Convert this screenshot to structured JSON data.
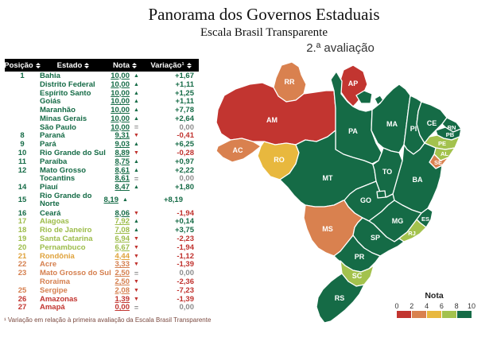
{
  "title": "Panorama dos Governos Estaduais",
  "subtitle": "Escala Brasil Transparente",
  "map": {
    "caption": "2.ª avaliação",
    "legend": {
      "title": "Nota",
      "ticks": [
        "0",
        "2",
        "4",
        "6",
        "8",
        "10"
      ]
    },
    "states": [
      {
        "id": "RR",
        "band": "g2"
      },
      {
        "id": "AP",
        "band": "g1"
      },
      {
        "id": "AM",
        "band": "g1"
      },
      {
        "id": "PA",
        "band": "g5"
      },
      {
        "id": "MARAJO",
        "band": "g5"
      },
      {
        "id": "ILHA",
        "band": "g5"
      },
      {
        "id": "MA",
        "band": "g5"
      },
      {
        "id": "PI",
        "band": "g5"
      },
      {
        "id": "CE",
        "band": "g5"
      },
      {
        "id": "RN",
        "band": "g5"
      },
      {
        "id": "PB",
        "band": "g5"
      },
      {
        "id": "PE",
        "band": "g4"
      },
      {
        "id": "AL",
        "band": "g4"
      },
      {
        "id": "SE",
        "band": "g2"
      },
      {
        "id": "BA",
        "band": "g5"
      },
      {
        "id": "AC",
        "band": "g2"
      },
      {
        "id": "RO",
        "band": "g3"
      },
      {
        "id": "MT",
        "band": "g5"
      },
      {
        "id": "TO",
        "band": "g5"
      },
      {
        "id": "GO",
        "band": "g5"
      },
      {
        "id": "DF",
        "band": "g5"
      },
      {
        "id": "MG",
        "band": "g5"
      },
      {
        "id": "ES",
        "band": "g5"
      },
      {
        "id": "MS",
        "band": "g2"
      },
      {
        "id": "SP",
        "band": "g5"
      },
      {
        "id": "RJ",
        "band": "g4"
      },
      {
        "id": "PR",
        "band": "g5"
      },
      {
        "id": "SC",
        "band": "g4"
      },
      {
        "id": "RS",
        "band": "g5"
      }
    ]
  },
  "colors": {
    "g1": "#c23530",
    "g2": "#d9814f",
    "g3": "#e8b83e",
    "g4": "#a3c24d",
    "g5": "#156b46",
    "legend_order": [
      "g1",
      "g2",
      "g3",
      "g4",
      "g5"
    ]
  },
  "table": {
    "headers": [
      "Posição",
      "Estado",
      "Nota",
      "Variação¹"
    ],
    "rows": [
      {
        "pos": "1",
        "estado": "Bahia",
        "nota": "10,00",
        "trend": "up",
        "variacao": "+1,67",
        "band": "g5"
      },
      {
        "pos": "",
        "estado": "Distrito Federal",
        "nota": "10,00",
        "trend": "up",
        "variacao": "+1,11",
        "band": "g5"
      },
      {
        "pos": "",
        "estado": "Espírito Santo",
        "nota": "10,00",
        "trend": "up",
        "variacao": "+1,25",
        "band": "g5"
      },
      {
        "pos": "",
        "estado": "Goiás",
        "nota": "10,00",
        "trend": "up",
        "variacao": "+1,11",
        "band": "g5"
      },
      {
        "pos": "",
        "estado": "Maranhão",
        "nota": "10,00",
        "trend": "up",
        "variacao": "+7,78",
        "band": "g5"
      },
      {
        "pos": "",
        "estado": "Minas Gerais",
        "nota": "10,00",
        "trend": "up",
        "variacao": "+2,64",
        "band": "g5"
      },
      {
        "pos": "",
        "estado": "São Paulo",
        "nota": "10,00",
        "trend": "eq",
        "variacao": "0,00",
        "band": "g5"
      },
      {
        "pos": "8",
        "estado": "Paraná",
        "nota": "9,31",
        "trend": "down",
        "variacao": "-0,41",
        "band": "g5"
      },
      {
        "pos": "9",
        "estado": "Pará",
        "nota": "9,03",
        "trend": "up",
        "variacao": "+6,25",
        "band": "g5"
      },
      {
        "pos": "10",
        "estado": "Rio Grande do Sul",
        "nota": "8,89",
        "trend": "down",
        "variacao": "-0,28",
        "band": "g5"
      },
      {
        "pos": "11",
        "estado": "Paraíba",
        "nota": "8,75",
        "trend": "up",
        "variacao": "+0,97",
        "band": "g5"
      },
      {
        "pos": "12",
        "estado": "Mato Grosso",
        "nota": "8,61",
        "trend": "up",
        "variacao": "+2,22",
        "band": "g5"
      },
      {
        "pos": "",
        "estado": "Tocantins",
        "nota": "8,61",
        "trend": "eq",
        "variacao": "0,00",
        "band": "g5"
      },
      {
        "pos": "14",
        "estado": "Piauí",
        "nota": "8,47",
        "trend": "up",
        "variacao": "+1,80",
        "band": "g5"
      },
      {
        "pos": "15",
        "estado": "Rio Grande do Norte",
        "nota": "8,19",
        "trend": "up",
        "variacao": "+8,19",
        "band": "g5",
        "wrap": true
      },
      {
        "pos": "16",
        "estado": "Ceará",
        "nota": "8,06",
        "trend": "down",
        "variacao": "-1,94",
        "band": "g5"
      },
      {
        "pos": "17",
        "estado": "Alagoas",
        "nota": "7,92",
        "trend": "up",
        "variacao": "+0,14",
        "band": "g4"
      },
      {
        "pos": "18",
        "estado": "Rio de Janeiro",
        "nota": "7,08",
        "trend": "up",
        "variacao": "+3,75",
        "band": "g4"
      },
      {
        "pos": "19",
        "estado": "Santa Catarina",
        "nota": "6,94",
        "trend": "down",
        "variacao": "-2,23",
        "band": "g4"
      },
      {
        "pos": "20",
        "estado": "Pernambuco",
        "nota": "6,67",
        "trend": "down",
        "variacao": "-1,94",
        "band": "g4"
      },
      {
        "pos": "21",
        "estado": "Rondônia",
        "nota": "4,44",
        "trend": "down",
        "variacao": "-1,12",
        "band": "g3"
      },
      {
        "pos": "22",
        "estado": "Acre",
        "nota": "3,33",
        "trend": "down",
        "variacao": "-1,39",
        "band": "g2"
      },
      {
        "pos": "23",
        "estado": "Mato Grosso do Sul",
        "nota": "2,50",
        "trend": "eq",
        "variacao": "0,00",
        "band": "g2"
      },
      {
        "pos": "",
        "estado": "Roraima",
        "nota": "2,50",
        "trend": "down",
        "variacao": "-2,36",
        "band": "g2"
      },
      {
        "pos": "25",
        "estado": "Sergipe",
        "nota": "2,08",
        "trend": "down",
        "variacao": "-7,23",
        "band": "g2"
      },
      {
        "pos": "26",
        "estado": "Amazonas",
        "nota": "1,39",
        "trend": "down",
        "variacao": "-1,39",
        "band": "g1"
      },
      {
        "pos": "27",
        "estado": "Amapá",
        "nota": "0,00",
        "trend": "eq",
        "variacao": "0,00",
        "band": "g1"
      }
    ]
  },
  "footnote": "¹ Variação em relação à primeira avaliação da Escala Brasil Transparente",
  "chart_data": {
    "type": "table",
    "title": "Panorama dos Governos Estaduais — Escala Brasil Transparente (2.ª avaliação)",
    "columns": [
      "Posição",
      "Estado",
      "Nota",
      "Variação"
    ],
    "rows": [
      [
        1,
        "Bahia",
        10.0,
        1.67
      ],
      [
        1,
        "Distrito Federal",
        10.0,
        1.11
      ],
      [
        1,
        "Espírito Santo",
        10.0,
        1.25
      ],
      [
        1,
        "Goiás",
        10.0,
        1.11
      ],
      [
        1,
        "Maranhão",
        10.0,
        7.78
      ],
      [
        1,
        "Minas Gerais",
        10.0,
        2.64
      ],
      [
        1,
        "São Paulo",
        10.0,
        0.0
      ],
      [
        8,
        "Paraná",
        9.31,
        -0.41
      ],
      [
        9,
        "Pará",
        9.03,
        6.25
      ],
      [
        10,
        "Rio Grande do Sul",
        8.89,
        -0.28
      ],
      [
        11,
        "Paraíba",
        8.75,
        0.97
      ],
      [
        12,
        "Mato Grosso",
        8.61,
        2.22
      ],
      [
        12,
        "Tocantins",
        8.61,
        0.0
      ],
      [
        14,
        "Piauí",
        8.47,
        1.8
      ],
      [
        15,
        "Rio Grande do Norte",
        8.19,
        8.19
      ],
      [
        16,
        "Ceará",
        8.06,
        -1.94
      ],
      [
        17,
        "Alagoas",
        7.92,
        0.14
      ],
      [
        18,
        "Rio de Janeiro",
        7.08,
        3.75
      ],
      [
        19,
        "Santa Catarina",
        6.94,
        -2.23
      ],
      [
        20,
        "Pernambuco",
        6.67,
        -1.94
      ],
      [
        21,
        "Rondônia",
        4.44,
        -1.12
      ],
      [
        22,
        "Acre",
        3.33,
        -1.39
      ],
      [
        23,
        "Mato Grosso do Sul",
        2.5,
        0.0
      ],
      [
        23,
        "Roraima",
        2.5,
        -2.36
      ],
      [
        25,
        "Sergipe",
        2.08,
        -7.23
      ],
      [
        26,
        "Amazonas",
        1.39,
        -1.39
      ],
      [
        27,
        "Amapá",
        0.0,
        0.0
      ]
    ],
    "map_scale": {
      "label": "Nota",
      "range": [
        0,
        10
      ],
      "bands": [
        "0-2 red",
        "2-4 orange",
        "4-6 amber",
        "6-8 light-green",
        "8-10 dark-green"
      ]
    }
  }
}
